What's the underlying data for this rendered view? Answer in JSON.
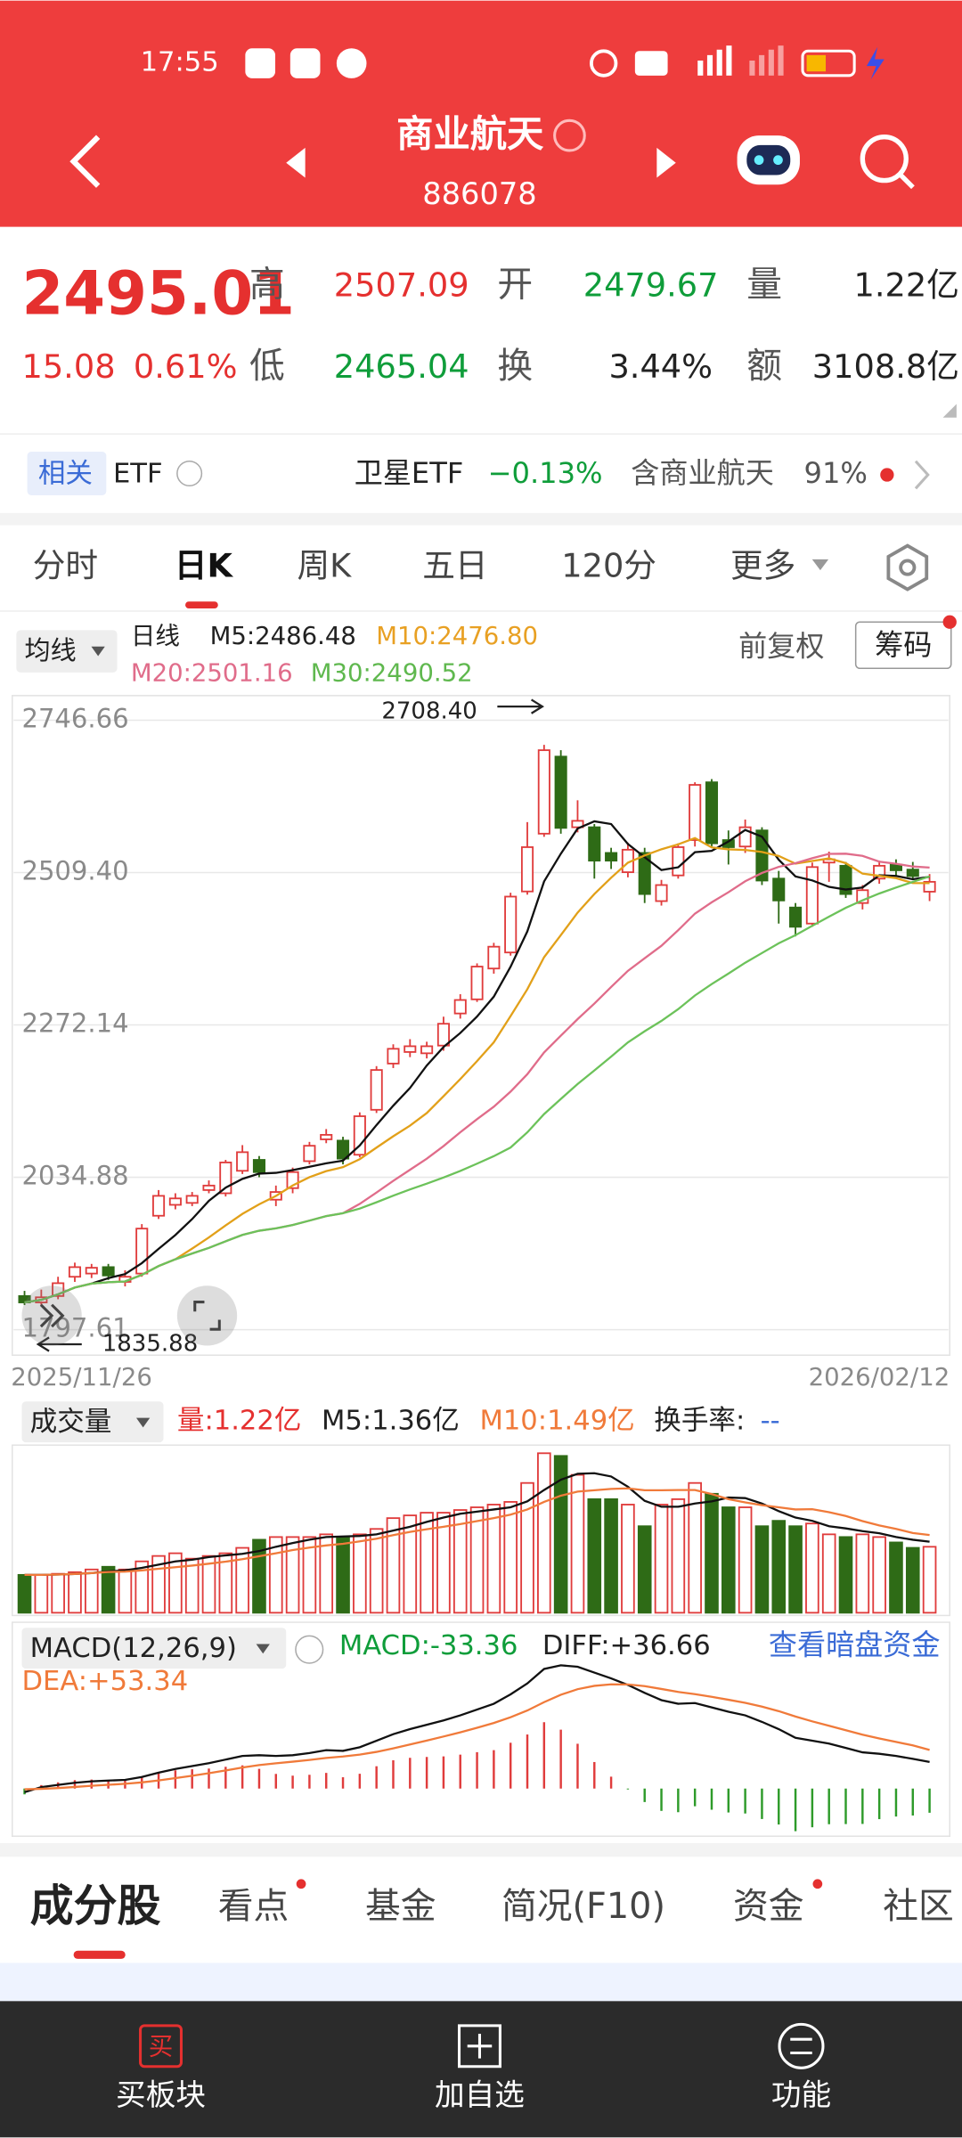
{
  "status": {
    "time": "17:55"
  },
  "header": {
    "title": "商业航天",
    "code": "886078"
  },
  "quote": {
    "price": "2495.01",
    "change": "15.08",
    "pct": "0.61%",
    "high_label": "高",
    "high": "2507.09",
    "open_label": "开",
    "open": "2479.67",
    "vol_label": "量",
    "vol": "1.22亿",
    "low_label": "低",
    "low": "2465.04",
    "turn_label": "换",
    "turn": "3.44%",
    "amount_label": "额",
    "amount": "3108.8亿"
  },
  "etf": {
    "tag": "相关",
    "label": "ETF",
    "name": "卫星ETF",
    "change": "−0.13%",
    "contains": "含商业航天",
    "weight": "91%"
  },
  "tabs": [
    "分时",
    "日K",
    "周K",
    "五日",
    "120分",
    "更多"
  ],
  "legend": {
    "selector": "均线",
    "period": "日线",
    "m5": "M5:2486.48",
    "m10": "M10:2476.80",
    "m20": "M20:2501.16",
    "m30": "M30:2490.52",
    "adjust": "前复权",
    "chips": "筹码"
  },
  "price_chart": {
    "ylim": [
      1760,
      2785
    ],
    "yticks": [
      2746.66,
      {
        "value": 2509.4,
        "label": "2509.40"
      },
      2272.14,
      2034.88,
      1797.61
    ],
    "high_label": "2708.40",
    "low_label": "1835.88",
    "start_date": "2025/11/26",
    "end_date": "2026/02/12",
    "candles": [
      [
        1850,
        1840,
        1858,
        1835.88
      ],
      [
        1840,
        1848,
        1860,
        1836
      ],
      [
        1850,
        1870,
        1880,
        1845
      ],
      [
        1880,
        1895,
        1902,
        1872
      ],
      [
        1885,
        1894,
        1900,
        1878
      ],
      [
        1895,
        1882,
        1900,
        1875
      ],
      [
        1872,
        1880,
        1890,
        1865
      ],
      [
        1885,
        1955,
        1962,
        1880
      ],
      [
        1975,
        2006,
        2015,
        1970
      ],
      [
        1992,
        2002,
        2010,
        1985
      ],
      [
        1995,
        2006,
        2012,
        1990
      ],
      [
        2015,
        2022,
        2030,
        2010
      ],
      [
        2010,
        2058,
        2062,
        2005
      ],
      [
        2045,
        2074,
        2085,
        2040
      ],
      [
        2062,
        2043,
        2068,
        2035
      ],
      [
        2000,
        2012,
        2022,
        1990
      ],
      [
        2018,
        2043,
        2050,
        2010
      ],
      [
        2060,
        2084,
        2090,
        2055
      ],
      [
        2094,
        2101,
        2110,
        2088
      ],
      [
        2092,
        2064,
        2098,
        2055
      ],
      [
        2070,
        2130,
        2136,
        2066
      ],
      [
        2140,
        2202,
        2208,
        2135
      ],
      [
        2212,
        2235,
        2242,
        2205
      ],
      [
        2230,
        2239,
        2250,
        2222
      ],
      [
        2228,
        2239,
        2246,
        2220
      ],
      [
        2240,
        2274,
        2285,
        2232
      ],
      [
        2290,
        2311,
        2320,
        2282
      ],
      [
        2312,
        2363,
        2368,
        2308
      ],
      [
        2360,
        2394,
        2400,
        2352
      ],
      [
        2385,
        2472,
        2478,
        2380
      ],
      [
        2480,
        2549,
        2588,
        2475
      ],
      [
        2570,
        2700,
        2708.4,
        2565
      ],
      [
        2690,
        2579,
        2700,
        2570
      ],
      [
        2580,
        2590,
        2622,
        2572
      ],
      [
        2580,
        2528,
        2585,
        2500
      ],
      [
        2540,
        2528,
        2548,
        2515
      ],
      [
        2510,
        2545,
        2556,
        2502
      ],
      [
        2540,
        2476,
        2548,
        2462
      ],
      [
        2465,
        2490,
        2498,
        2458
      ],
      [
        2505,
        2549,
        2555,
        2500
      ],
      [
        2560,
        2646,
        2650,
        2550
      ],
      [
        2650,
        2555,
        2655,
        2550
      ],
      [
        2560,
        2549,
        2575,
        2522
      ],
      [
        2550,
        2580,
        2592,
        2540
      ],
      [
        2575,
        2497,
        2580,
        2490
      ],
      [
        2500,
        2466,
        2512,
        2430
      ],
      [
        2455,
        2425,
        2462,
        2410
      ],
      [
        2430,
        2518,
        2525,
        2425
      ],
      [
        2525,
        2530,
        2542,
        2495
      ],
      [
        2520,
        2476,
        2526,
        2470
      ],
      [
        2462,
        2482,
        2490,
        2452
      ],
      [
        2500,
        2520,
        2528,
        2492
      ],
      [
        2522,
        2513,
        2530,
        2505
      ],
      [
        2514,
        2504,
        2526,
        2498
      ],
      [
        2479.67,
        2495.01,
        2507.09,
        2465.04
      ]
    ]
  },
  "volume": {
    "selector": "成交量",
    "vol": "量:1.22亿",
    "m5": "M5:1.36亿",
    "m10": "M10:1.49亿",
    "turn": "换手率:",
    "turn_value": "--",
    "ylim": [
      0,
      3.1
    ],
    "values": [
      0.7,
      0.7,
      0.72,
      0.75,
      0.8,
      0.85,
      0.8,
      0.95,
      1.05,
      1.1,
      1.0,
      1.05,
      1.1,
      1.2,
      1.35,
      1.4,
      1.4,
      1.4,
      1.45,
      1.4,
      1.45,
      1.55,
      1.75,
      1.8,
      1.85,
      1.85,
      1.9,
      1.95,
      2.0,
      2.05,
      2.4,
      2.95,
      2.9,
      2.55,
      2.1,
      2.1,
      2.0,
      1.6,
      2.0,
      2.1,
      2.4,
      2.2,
      1.95,
      1.95,
      1.6,
      1.7,
      1.6,
      1.65,
      1.45,
      1.4,
      1.45,
      1.4,
      1.3,
      1.2,
      1.22
    ]
  },
  "macd": {
    "selector": "MACD(12,26,9)",
    "macd": "MACD:-33.36",
    "diff_label": "DIFF:+36.66",
    "dea_label": "DEA:+53.34",
    "link": "查看暗盘资金",
    "ylim": [
      -62,
      220
    ],
    "diff": [
      -5,
      2,
      5,
      8,
      10,
      11,
      12,
      16,
      22,
      27,
      31,
      35,
      40,
      45,
      46,
      45,
      46,
      49,
      53,
      52,
      57,
      66,
      75,
      82,
      88,
      94,
      101,
      109,
      117,
      130,
      145,
      165,
      170,
      168,
      160,
      152,
      143,
      132,
      122,
      117,
      118,
      112,
      106,
      101,
      92,
      82,
      70,
      66,
      62,
      56,
      50,
      48,
      45,
      41,
      36.66
    ],
    "dea": [
      -1,
      -0.4,
      0.7,
      2.2,
      3.8,
      5.2,
      6.6,
      8.5,
      11.2,
      14.4,
      17.7,
      21.2,
      25,
      29,
      32.4,
      34.9,
      37.1,
      39.5,
      42.2,
      44.2,
      46.8,
      50.6,
      55.5,
      60.8,
      66.2,
      71.8,
      77.6,
      83.9,
      90.5,
      98.4,
      107.7,
      119.2,
      129.4,
      137.1,
      141.7,
      143.8,
      143.6,
      141.3,
      137.4,
      133.3,
      130.2,
      126.6,
      122.5,
      118.2,
      113,
      106.8,
      99.4,
      92.7,
      86.6,
      80.5,
      74.4,
      69.1,
      64.3,
      59.6,
      53.34
    ],
    "hist": [
      -8,
      4.8,
      8.6,
      11.6,
      12.4,
      11.6,
      10.8,
      15,
      21.6,
      25.2,
      26.6,
      27.6,
      30,
      32,
      27.2,
      20.2,
      17.8,
      19,
      21.6,
      15.6,
      20.4,
      30.8,
      39,
      42.4,
      43.6,
      44.4,
      46.8,
      50.2,
      53,
      63.2,
      74.6,
      91.6,
      81.2,
      61.8,
      36.6,
      16.4,
      -1.2,
      -18.6,
      -30.8,
      -32.6,
      -24.4,
      -29.2,
      -33,
      -34.4,
      -42,
      -49.6,
      -58.8,
      -53.4,
      -49.2,
      -49,
      -48.8,
      -42.2,
      -38.6,
      -37.2,
      -33.36
    ]
  },
  "bottom_tabs": [
    "成分股",
    "看点",
    "基金",
    "简况(F10)",
    "资金",
    "社区"
  ],
  "nav": {
    "buy_icon": "买",
    "items": [
      "买板块",
      "加自选",
      "功能"
    ]
  }
}
